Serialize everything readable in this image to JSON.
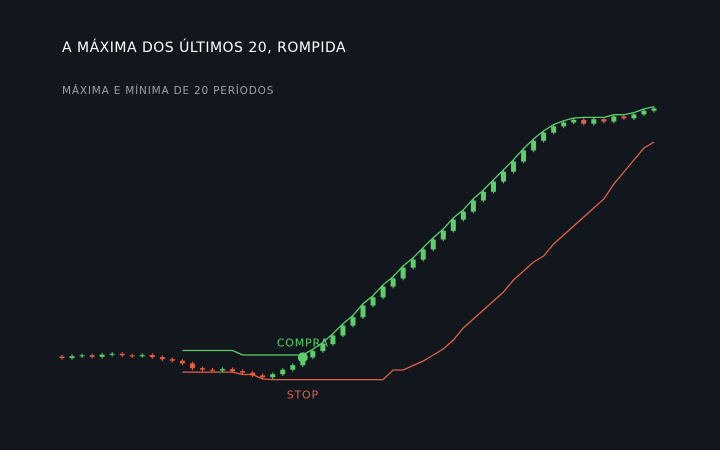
{
  "chart_data": {
    "type": "candlestick",
    "title": "A MÁXIMA DOS ÚLTIMOS 20, ROMPIDA",
    "subtitle": "MÁXIMA E MÍNIMA DE 20 PERÍODOS",
    "ylim": [
      0,
      100
    ],
    "up_color": "#5ccf6c",
    "down_color": "#e0604a",
    "open": [
      14.5,
      14,
      14.6,
      14.9,
      14.4,
      15.1,
      15.4,
      14.9,
      14.6,
      15,
      14.3,
      13.6,
      13.1,
      12.2,
      10.6,
      10.1,
      9.8,
      10.3,
      9.6,
      9.1,
      8.2,
      7.6,
      8.6,
      10.1,
      11.6,
      14.2,
      16.3,
      18.6,
      21.5,
      24.8,
      27.6,
      31.5,
      34.2,
      37.8,
      40.5,
      44.1,
      46.8,
      50.2,
      53.5,
      56.4,
      60.1,
      62.8,
      66.5,
      69.4,
      72.8,
      76.1,
      79.5,
      83.2,
      86.4,
      89.1,
      91.2,
      92.5,
      93.4,
      92.1,
      93.6,
      92.8,
      94.5,
      93.9,
      95.2,
      96.4
    ],
    "high": [
      15.1,
      15.2,
      15.5,
      15.5,
      15.7,
      16,
      16,
      15.5,
      15.6,
      15.6,
      14.9,
      14.2,
      13.7,
      12.8,
      11.2,
      10.7,
      10.9,
      10.9,
      10.2,
      9.7,
      8.8,
      9.2,
      10.7,
      12.2,
      14.8,
      16.9,
      19.2,
      22.1,
      25.4,
      28.2,
      32.1,
      34.8,
      38.4,
      41.1,
      44.7,
      47.4,
      50.8,
      54.1,
      57,
      60.7,
      63.4,
      67.1,
      70,
      73.4,
      76.7,
      80.1,
      83.8,
      87,
      89.7,
      91.8,
      93.1,
      94,
      94,
      94.2,
      94.2,
      95.1,
      95.1,
      95.8,
      97,
      97.8
    ],
    "low": [
      13.4,
      13.4,
      14,
      13.8,
      13.8,
      14.5,
      14.3,
      14,
      14,
      13.7,
      13,
      12.5,
      11.6,
      10,
      9.5,
      9.2,
      9.2,
      9,
      8.5,
      7.6,
      7,
      7,
      8,
      9.5,
      11,
      13.6,
      15.7,
      18,
      20.9,
      24.2,
      27,
      30.9,
      33.6,
      37.2,
      39.9,
      43.5,
      46.2,
      49.6,
      52.9,
      55.8,
      59.5,
      62.2,
      65.9,
      68.8,
      72.2,
      75.5,
      78.9,
      82.6,
      85.8,
      88.5,
      90.6,
      91.9,
      91.5,
      91.5,
      92.2,
      92.2,
      93.3,
      93.3,
      94.6,
      95.8
    ],
    "close": [
      14,
      14.6,
      14.9,
      14.4,
      15.1,
      15.4,
      14.9,
      14.6,
      15,
      14.3,
      13.6,
      13.1,
      12.2,
      10.6,
      10.1,
      9.8,
      10.3,
      9.6,
      9.1,
      8.2,
      7.6,
      8.6,
      10.1,
      11.6,
      14.2,
      16.3,
      18.6,
      21.5,
      24.8,
      27.6,
      31.5,
      34.2,
      37.8,
      40.5,
      44.1,
      46.8,
      50.2,
      53.5,
      56.4,
      60.1,
      62.8,
      66.5,
      69.4,
      72.8,
      76.1,
      79.5,
      83.2,
      86.4,
      89.1,
      91.2,
      92.5,
      93.4,
      92.1,
      93.6,
      92.8,
      94.5,
      93.9,
      95.2,
      96.4,
      97.2
    ],
    "upper": {
      "color": "#5ccf6c",
      "values": [
        null,
        null,
        null,
        null,
        null,
        null,
        null,
        null,
        null,
        null,
        null,
        null,
        16.5,
        16.5,
        16.5,
        16.5,
        16.5,
        16.5,
        15,
        15,
        15,
        15,
        15,
        15,
        15,
        16.9,
        19.2,
        22.1,
        25.4,
        28.2,
        32.1,
        34.8,
        38.4,
        41.1,
        44.7,
        47.4,
        50.8,
        54.1,
        57,
        60.7,
        63.4,
        67.1,
        70,
        73.4,
        76.7,
        80.1,
        83.8,
        87,
        89.7,
        91.8,
        93.1,
        94,
        94.2,
        94.2,
        94.2,
        95.1,
        95.1,
        95.8,
        97,
        97.8
      ]
    },
    "lower": {
      "color": "#e0604a",
      "values": [
        null,
        null,
        null,
        null,
        null,
        null,
        null,
        null,
        null,
        null,
        null,
        null,
        9.3,
        9.3,
        9.3,
        9.3,
        9.3,
        9.3,
        8.5,
        8.5,
        7,
        6.8,
        6.8,
        6.8,
        6.8,
        6.8,
        6.8,
        6.8,
        6.8,
        6.8,
        6.8,
        6.8,
        6.8,
        10,
        10,
        11.5,
        13,
        15,
        17,
        20,
        24,
        27,
        30,
        33,
        36,
        40,
        43,
        46,
        48,
        52,
        55,
        58,
        61,
        64,
        67,
        72,
        76,
        80,
        84,
        86
      ]
    },
    "annotations": [
      {
        "text": "COMPRA",
        "color": "#5ccf6c"
      },
      {
        "text": "STOP",
        "color": "#e0604a"
      }
    ]
  }
}
